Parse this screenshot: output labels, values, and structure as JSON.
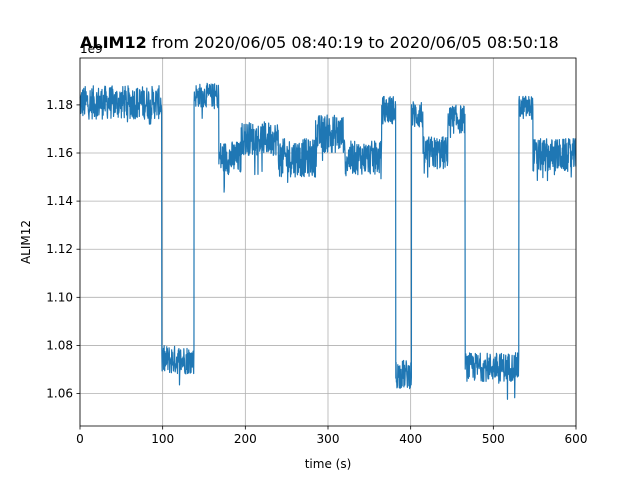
{
  "chart_data": {
    "type": "line",
    "title_bold": "ALIM12",
    "title_rest": " from 2020/06/05 08:40:19 to 2020/06/05 08:50:18",
    "xlabel": "time (s)",
    "ylabel": "ALIM12",
    "y_offset_label": "1e9",
    "xlim": [
      0,
      600
    ],
    "ylim": [
      1.0465,
      1.1995
    ],
    "x_ticks": [
      0,
      100,
      200,
      300,
      400,
      500,
      600
    ],
    "x_tick_labels": [
      "0",
      "100",
      "200",
      "300",
      "400",
      "500",
      "600"
    ],
    "y_ticks": [
      1.06,
      1.08,
      1.1,
      1.12,
      1.14,
      1.16,
      1.18
    ],
    "y_tick_labels": [
      "1.06",
      "1.08",
      "1.10",
      "1.12",
      "1.14",
      "1.16",
      "1.18"
    ],
    "grid": true,
    "line_color": "#1f77b4",
    "series": [
      {
        "segments": [
          {
            "x0": 0,
            "x1": 99,
            "mean": 1.181,
            "noise": 0.007
          },
          {
            "x0": 99,
            "x1": 138,
            "mean": 1.074,
            "noise": 0.006
          },
          {
            "x0": 138,
            "x1": 168,
            "mean": 1.184,
            "noise": 0.005
          },
          {
            "x0": 168,
            "x1": 195,
            "mean": 1.158,
            "noise": 0.007
          },
          {
            "x0": 195,
            "x1": 240,
            "mean": 1.166,
            "noise": 0.007
          },
          {
            "x0": 240,
            "x1": 285,
            "mean": 1.158,
            "noise": 0.008
          },
          {
            "x0": 285,
            "x1": 320,
            "mean": 1.168,
            "noise": 0.008
          },
          {
            "x0": 320,
            "x1": 365,
            "mean": 1.158,
            "noise": 0.007
          },
          {
            "x0": 365,
            "x1": 382,
            "mean": 1.178,
            "noise": 0.006
          },
          {
            "x0": 382,
            "x1": 401,
            "mean": 1.068,
            "noise": 0.006
          },
          {
            "x0": 401,
            "x1": 415,
            "mean": 1.176,
            "noise": 0.006
          },
          {
            "x0": 415,
            "x1": 445,
            "mean": 1.16,
            "noise": 0.007
          },
          {
            "x0": 445,
            "x1": 466,
            "mean": 1.174,
            "noise": 0.006
          },
          {
            "x0": 466,
            "x1": 531,
            "mean": 1.071,
            "noise": 0.006
          },
          {
            "x0": 531,
            "x1": 548,
            "mean": 1.179,
            "noise": 0.005
          },
          {
            "x0": 548,
            "x1": 600,
            "mean": 1.159,
            "noise": 0.007
          }
        ]
      }
    ]
  }
}
